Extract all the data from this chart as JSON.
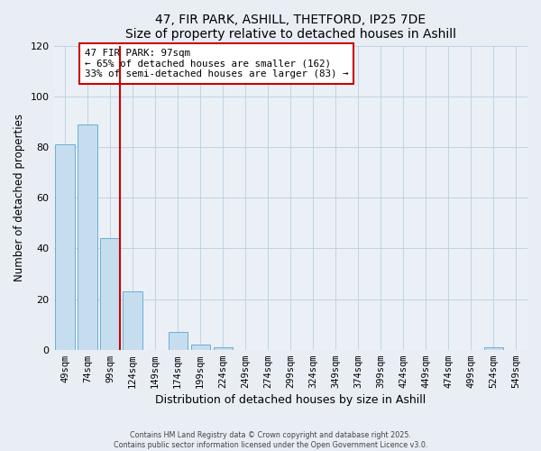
{
  "title": "47, FIR PARK, ASHILL, THETFORD, IP25 7DE",
  "subtitle": "Size of property relative to detached houses in Ashill",
  "xlabel": "Distribution of detached houses by size in Ashill",
  "ylabel": "Number of detached properties",
  "categories": [
    "49sqm",
    "74sqm",
    "99sqm",
    "124sqm",
    "149sqm",
    "174sqm",
    "199sqm",
    "224sqm",
    "249sqm",
    "274sqm",
    "299sqm",
    "324sqm",
    "349sqm",
    "374sqm",
    "399sqm",
    "424sqm",
    "449sqm",
    "474sqm",
    "499sqm",
    "524sqm",
    "549sqm"
  ],
  "values": [
    81,
    89,
    44,
    23,
    0,
    7,
    2,
    1,
    0,
    0,
    0,
    0,
    0,
    0,
    0,
    0,
    0,
    0,
    0,
    1,
    0
  ],
  "bar_color": "#c5ddef",
  "bar_edge_color": "#6aaed6",
  "marker_line_index": 2,
  "marker_label": "47 FIR PARK: 97sqm",
  "annotation_line1": "← 65% of detached houses are smaller (162)",
  "annotation_line2": "33% of semi-detached houses are larger (83) →",
  "marker_line_color": "#cc0000",
  "annotation_box_edge_color": "#cc0000",
  "ylim": [
    0,
    120
  ],
  "yticks": [
    0,
    20,
    40,
    60,
    80,
    100,
    120
  ],
  "footer1": "Contains HM Land Registry data © Crown copyright and database right 2025.",
  "footer2": "Contains public sector information licensed under the Open Government Licence v3.0.",
  "background_color": "#e8eef4",
  "plot_background_color": "#eaf0f6"
}
